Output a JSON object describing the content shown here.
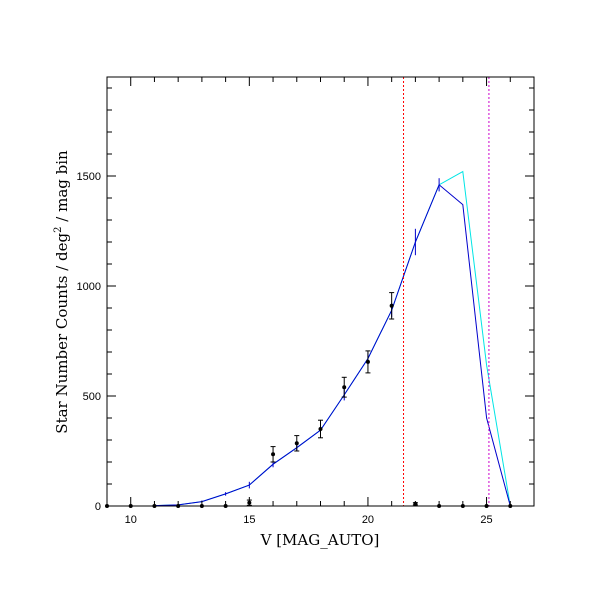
{
  "chart_data": {
    "type": "line",
    "xlabel": "V [MAG_AUTO]",
    "ylabel_main": "Star Number Counts / deg",
    "ylabel_sup": "2",
    "ylabel_tail": " / mag bin",
    "xlim": [
      9,
      27
    ],
    "ylim": [
      0,
      1950
    ],
    "x_ticks_major": [
      10,
      15,
      20,
      25
    ],
    "x_ticks_minor": [
      9,
      11,
      12,
      13,
      14,
      16,
      17,
      18,
      19,
      21,
      22,
      23,
      24,
      26,
      27
    ],
    "y_ticks_major": [
      0,
      500,
      1000,
      1500
    ],
    "y_ticks_minor": [
      100,
      200,
      300,
      400,
      600,
      700,
      800,
      900,
      1100,
      1200,
      1300,
      1400,
      1600,
      1700,
      1800,
      1900
    ],
    "series": [
      {
        "role": "model-cyan",
        "color": "#00e5e5",
        "x": [
          11,
          12,
          13,
          14,
          15,
          16,
          17,
          18,
          19,
          20,
          21,
          22,
          23,
          24,
          25,
          26
        ],
        "y": [
          2,
          5,
          20,
          55,
          95,
          190,
          265,
          345,
          505,
          670,
          890,
          1200,
          1460,
          1520,
          640,
          0
        ]
      },
      {
        "role": "model-blue",
        "color": "#0000cc",
        "x": [
          11,
          12,
          13,
          14,
          15,
          16,
          17,
          18,
          19,
          20,
          21,
          22,
          23,
          24,
          25,
          26
        ],
        "y": [
          2,
          5,
          20,
          55,
          95,
          190,
          265,
          345,
          505,
          670,
          890,
          1200,
          1460,
          1370,
          400,
          0
        ]
      },
      {
        "role": "model-errorbars",
        "color": "#0000cc",
        "x": [
          11,
          12,
          13,
          14,
          15,
          16,
          17,
          18,
          19,
          20,
          21,
          22,
          23,
          24,
          25
        ],
        "y": [
          2,
          5,
          20,
          55,
          95,
          190,
          265,
          345,
          505,
          670,
          890,
          1200,
          1460,
          1370,
          400
        ],
        "err": [
          2,
          3,
          5,
          8,
          15,
          14,
          17,
          20,
          25,
          28,
          32,
          60,
          30,
          0,
          0
        ]
      }
    ],
    "observed": {
      "color": "#000000",
      "x": [
        9,
        10,
        11,
        12,
        13,
        14,
        15,
        16,
        17,
        18,
        19,
        20,
        21,
        22,
        23,
        24,
        25,
        26
      ],
      "y": [
        0,
        0,
        0,
        0,
        0,
        0,
        15,
        235,
        285,
        350,
        540,
        655,
        910,
        10,
        0,
        0,
        0,
        0
      ],
      "err": [
        0,
        0,
        0,
        0,
        0,
        0,
        12,
        35,
        35,
        40,
        45,
        50,
        60,
        5,
        0,
        0,
        0,
        0
      ]
    },
    "vlines": [
      {
        "x": 21.5,
        "color": "#ff0000"
      },
      {
        "x": 25.1,
        "color": "#cc00cc"
      }
    ]
  }
}
